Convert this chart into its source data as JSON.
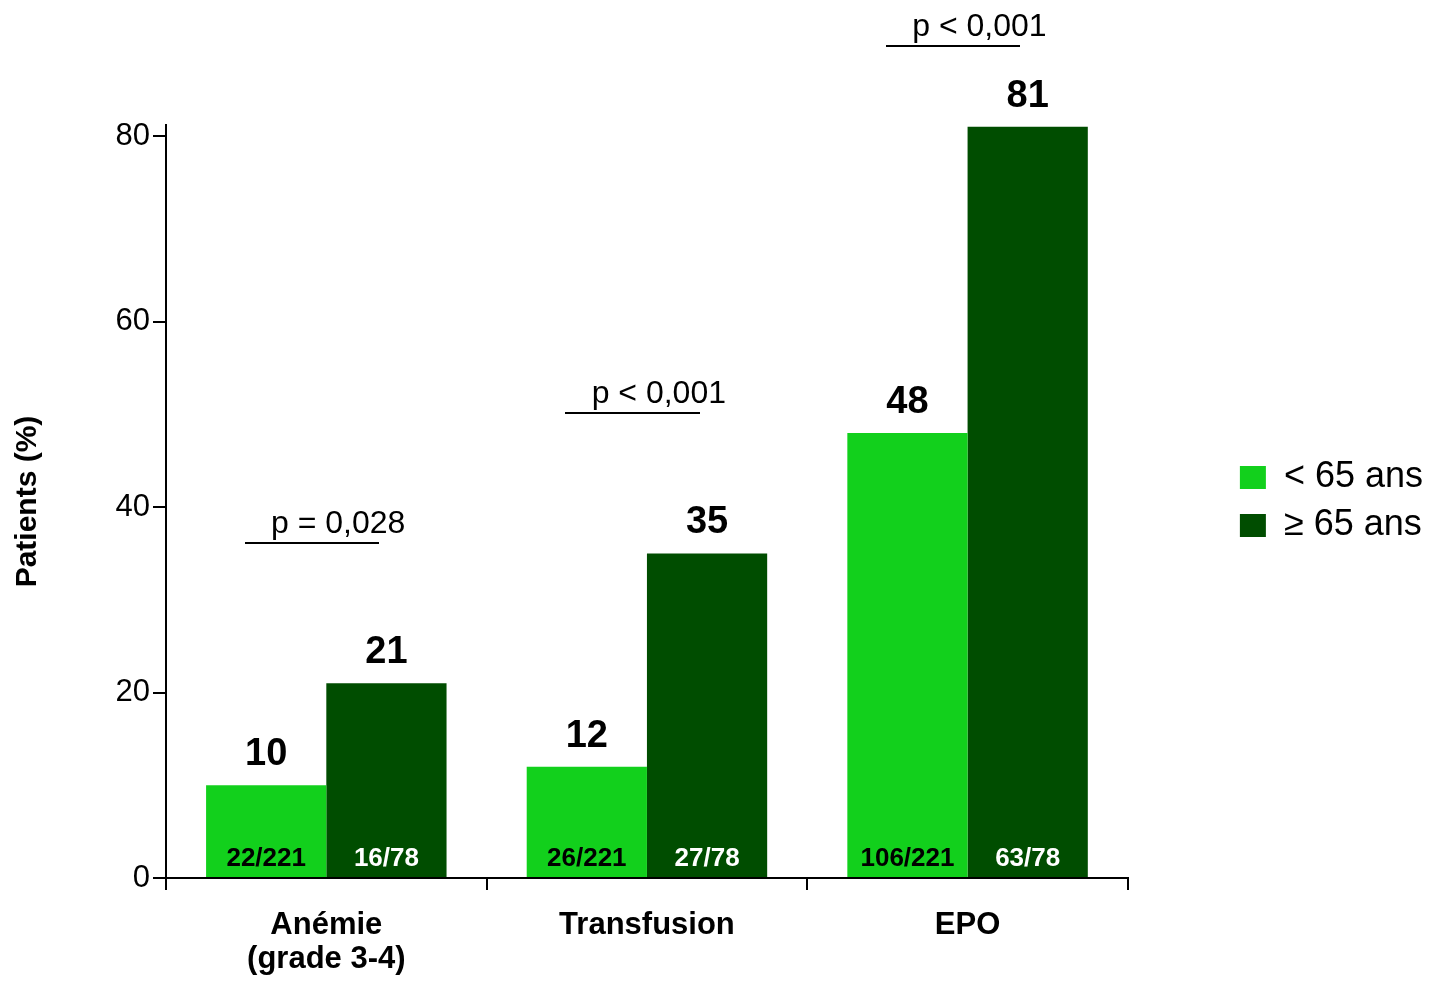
{
  "chart_data": {
    "type": "bar",
    "ylabel": "Patients (%)",
    "categories": [
      "Anémie\n(grade 3-4)",
      "Transfusion",
      "EPO"
    ],
    "series": [
      {
        "name": "< 65 ans",
        "color": "#12d01c",
        "values": [
          10,
          12,
          48
        ]
      },
      {
        "name": "≥ 65 ans",
        "color": "#004d00",
        "values": [
          21,
          35,
          81
        ]
      }
    ],
    "ylim": [
      0,
      81.2
    ],
    "yticks": [
      0,
      20,
      40,
      60,
      80
    ],
    "data_labels": true,
    "legend": "right",
    "annotations": [
      "p = 0,028",
      "p < 0,001",
      "p < 0,001",
      {
        "text": "22/221",
        "x": "Anémie\n(grade 3-4)",
        "y": 0
      },
      {
        "text": "16/78",
        "x": "Anémie\n(grade 3-4)",
        "y": 0
      },
      {
        "text": "26/221",
        "x": "Transfusion",
        "y": 0
      },
      {
        "text": "27/78",
        "x": "Transfusion",
        "y": 0
      },
      {
        "text": "106/221",
        "x": "EPO",
        "y": 0
      },
      {
        "text": "63/78",
        "x": "EPO",
        "y": 0
      }
    ]
  }
}
